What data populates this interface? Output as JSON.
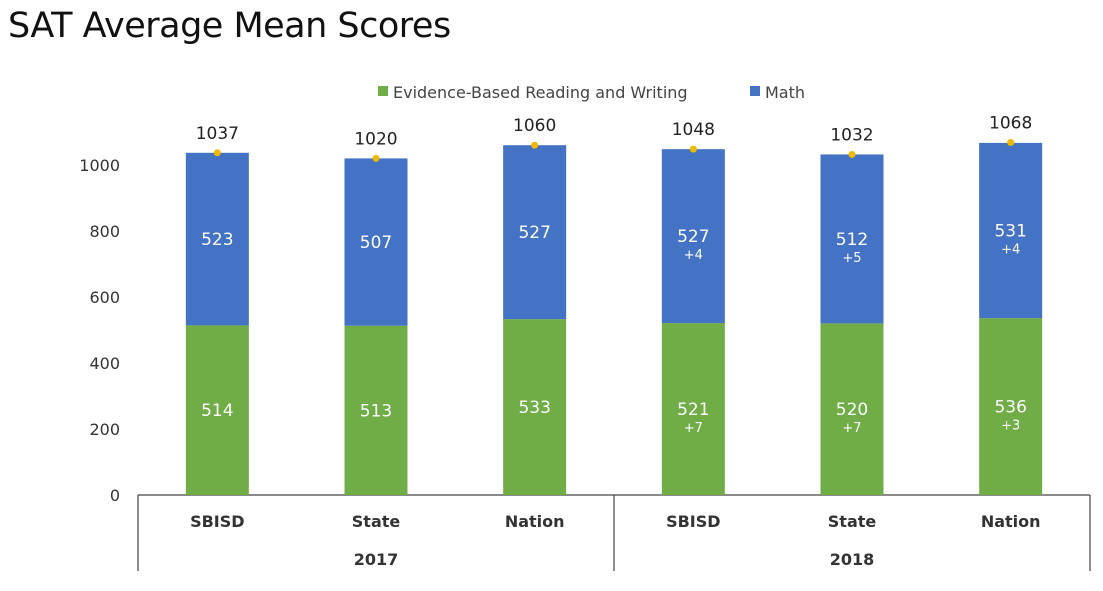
{
  "chart_data": {
    "type": "bar",
    "stacked": true,
    "title": "SAT Average Mean Scores",
    "categories": [
      "SBISD",
      "State",
      "Nation",
      "SBISD",
      "State",
      "Nation"
    ],
    "groups": [
      {
        "label": "2017",
        "span": 3
      },
      {
        "label": "2018",
        "span": 3
      }
    ],
    "series": [
      {
        "name": "Evidence-Based Reading and Writing",
        "color": "#70ad47",
        "values": [
          514,
          513,
          533,
          521,
          520,
          536
        ],
        "changes": [
          "",
          "",
          "",
          "+7",
          "+7",
          "+3"
        ]
      },
      {
        "name": "Math",
        "color": "#4472c4",
        "values": [
          523,
          507,
          527,
          527,
          512,
          531
        ],
        "changes": [
          "",
          "",
          "",
          "+4",
          "+5",
          "+4"
        ]
      }
    ],
    "totals": [
      1037,
      1020,
      1060,
      1048,
      1032,
      1068
    ],
    "total_marker_color": "#f0b800",
    "yticks": [
      0,
      200,
      400,
      600,
      800,
      1000
    ],
    "ylim": [
      0,
      1000
    ],
    "xlabel": "",
    "ylabel": "",
    "grid": false,
    "legend_position": "top"
  }
}
